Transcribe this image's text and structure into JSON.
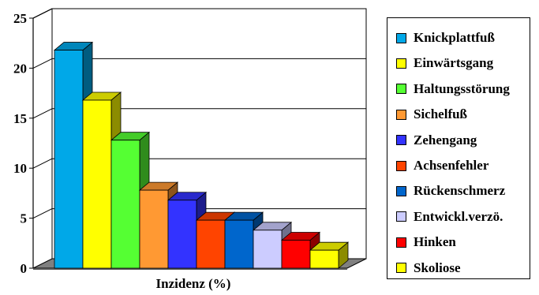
{
  "chart_data": {
    "type": "bar",
    "xlabel": "Inzidenz (%)",
    "ylim": [
      0,
      25
    ],
    "yticks": [
      0,
      5,
      10,
      15,
      20,
      25
    ],
    "grid": true,
    "legend_position": "right",
    "categories": [
      "Knickplattfuß",
      "Einwärtsgang",
      "Haltungsstörung",
      "Sichelfuß",
      "Zehengang",
      "Achsenfehler",
      "Rückenschmerz",
      "Entwickl.verzö.",
      "Hinken",
      "Skoliose"
    ],
    "values": [
      21.8,
      16.8,
      12.8,
      7.8,
      6.8,
      4.8,
      4.8,
      3.8,
      2.8,
      1.8
    ],
    "colors": [
      "#00A8E8",
      "#FFFF00",
      "#55FF33",
      "#FF9933",
      "#3333FF",
      "#FF4400",
      "#0066CC",
      "#CCCCFF",
      "#FF0000",
      "#FFFF00"
    ]
  }
}
